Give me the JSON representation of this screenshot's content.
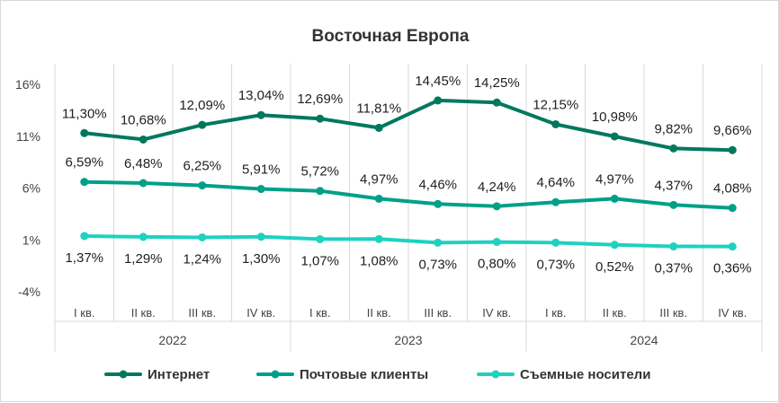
{
  "chart_data": {
    "type": "line",
    "title": "Восточная Европа",
    "y_ticks": [
      "16%",
      "11%",
      "6%",
      "1%",
      "-4%"
    ],
    "y_tick_values": [
      16,
      11,
      6,
      1,
      -4
    ],
    "ylim": [
      -4,
      16
    ],
    "categories": [
      "I кв.",
      "II кв.",
      "III кв.",
      "IV кв.",
      "I кв.",
      "II кв.",
      "III кв.",
      "IV кв.",
      "I кв.",
      "II кв.",
      "III кв.",
      "IV кв."
    ],
    "years": [
      {
        "label": "2022",
        "span": [
          0,
          3
        ]
      },
      {
        "label": "2023",
        "span": [
          4,
          7
        ]
      },
      {
        "label": "2024",
        "span": [
          8,
          11
        ]
      }
    ],
    "grid": "vertical",
    "legend_position": "bottom",
    "series": [
      {
        "name": "Интернет",
        "color": "#00785f",
        "values": [
          11.3,
          10.68,
          12.09,
          13.04,
          12.69,
          11.81,
          14.45,
          14.25,
          12.15,
          10.98,
          9.82,
          9.66
        ],
        "labels": [
          "11,30%",
          "10,68%",
          "12,09%",
          "13,04%",
          "12,69%",
          "11,81%",
          "14,45%",
          "14,25%",
          "12,15%",
          "10,98%",
          "9,82%",
          "9,66%"
        ]
      },
      {
        "name": "Почтовые клиенты",
        "color": "#00a088",
        "values": [
          6.59,
          6.48,
          6.25,
          5.91,
          5.72,
          4.97,
          4.46,
          4.24,
          4.64,
          4.97,
          4.37,
          4.08
        ],
        "labels": [
          "6,59%",
          "6,48%",
          "6,25%",
          "5,91%",
          "5,72%",
          "4,97%",
          "4,46%",
          "4,24%",
          "4,64%",
          "4,97%",
          "4,37%",
          "4,08%"
        ]
      },
      {
        "name": "Съемные носители",
        "color": "#1ed1c0",
        "values": [
          1.37,
          1.29,
          1.24,
          1.3,
          1.07,
          1.08,
          0.73,
          0.8,
          0.73,
          0.52,
          0.37,
          0.36
        ],
        "labels": [
          "1,37%",
          "1,29%",
          "1,24%",
          "1,30%",
          "1,07%",
          "1,08%",
          "0,73%",
          "0,80%",
          "0,73%",
          "0,52%",
          "0,37%",
          "0,36%"
        ]
      }
    ]
  }
}
